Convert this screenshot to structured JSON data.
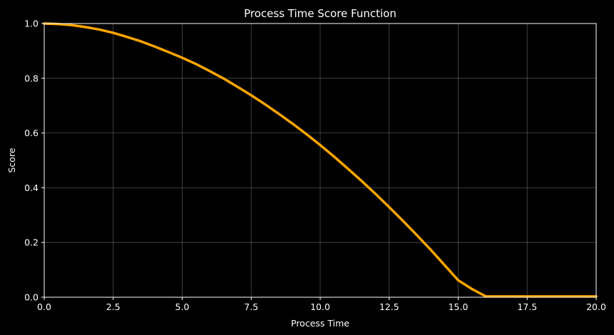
{
  "chart_data": {
    "type": "line",
    "title": "Process Time Score Function",
    "xlabel": "Process Time",
    "ylabel": "Score",
    "xlim": [
      0,
      20
    ],
    "ylim": [
      0,
      1
    ],
    "xticks": [
      "0.0",
      "2.5",
      "5.0",
      "7.5",
      "10.0",
      "12.5",
      "15.0",
      "17.5",
      "20.0"
    ],
    "yticks": [
      "0.0",
      "0.2",
      "0.4",
      "0.6",
      "0.8",
      "1.0"
    ],
    "grid": true,
    "series": [
      {
        "color": "#ffa500",
        "x": [
          0,
          0.5,
          1,
          1.5,
          2,
          2.5,
          3,
          3.5,
          4,
          4.5,
          5,
          5.5,
          6,
          6.5,
          7,
          7.5,
          8,
          8.5,
          9,
          9.5,
          10,
          10.5,
          11,
          11.5,
          12,
          12.5,
          13,
          13.5,
          14,
          14.5,
          15,
          15.5,
          16,
          16.5,
          17,
          17.5,
          18,
          18.5,
          19,
          19.5,
          20
        ],
        "y": [
          1.0,
          0.998,
          0.994,
          0.987,
          0.978,
          0.966,
          0.951,
          0.935,
          0.916,
          0.896,
          0.875,
          0.852,
          0.826,
          0.799,
          0.769,
          0.738,
          0.705,
          0.67,
          0.634,
          0.596,
          0.556,
          0.514,
          0.47,
          0.425,
          0.378,
          0.329,
          0.279,
          0.227,
          0.174,
          0.118,
          0.062,
          0.03,
          0.003,
          0.003,
          0.003,
          0.003,
          0.003,
          0.003,
          0.003,
          0.003,
          0.003
        ]
      }
    ]
  }
}
